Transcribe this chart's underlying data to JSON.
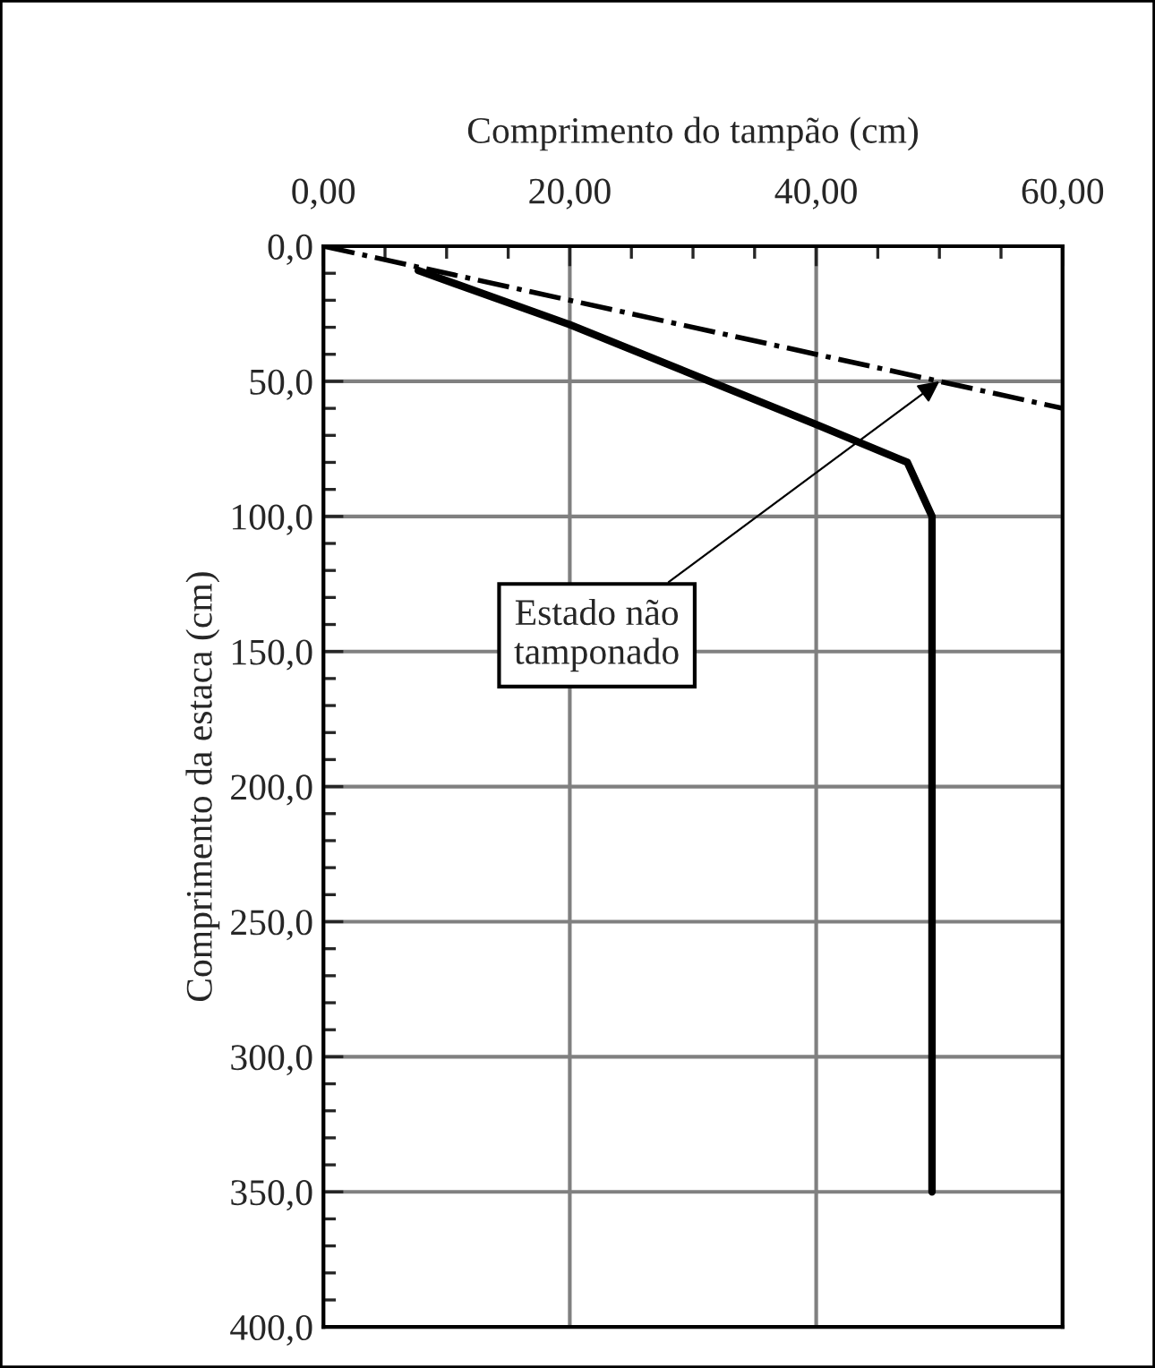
{
  "chart_data": {
    "type": "line",
    "xlabel": "Comprimento do tampão (cm)",
    "ylabel": "Comprimento da estaca (cm)",
    "xlim": [
      0,
      60
    ],
    "xticks": [
      {
        "value": 0,
        "label": "0,00"
      },
      {
        "value": 20,
        "label": "20,00"
      },
      {
        "value": 40,
        "label": "40,00"
      },
      {
        "value": 60,
        "label": "60,00"
      }
    ],
    "ylim": [
      400,
      0
    ],
    "yticks": [
      {
        "value": 0,
        "label": "0,0"
      },
      {
        "value": 50,
        "label": "50,0"
      },
      {
        "value": 100,
        "label": "100,0"
      },
      {
        "value": 150,
        "label": "150,0"
      },
      {
        "value": 200,
        "label": "200,0"
      },
      {
        "value": 250,
        "label": "250,0"
      },
      {
        "value": 300,
        "label": "300,0"
      },
      {
        "value": 350,
        "label": "350,0"
      },
      {
        "value": 400,
        "label": "400,0"
      }
    ],
    "series": [
      {
        "color": "#000000",
        "line_style": "solid",
        "x": [
          7.7,
          20,
          40,
          47.4,
          49.4,
          49.4
        ],
        "values": [
          9,
          29,
          66,
          80,
          100,
          350
        ]
      },
      {
        "color": "#000000",
        "line_style": "dashdot",
        "x": [
          0,
          60
        ],
        "values": [
          0,
          60
        ]
      }
    ],
    "annotations": [
      {
        "text": "Estado não\ntamponado",
        "x": 50,
        "y": 50
      }
    ],
    "grid": true,
    "legend": false,
    "marker": "none"
  }
}
